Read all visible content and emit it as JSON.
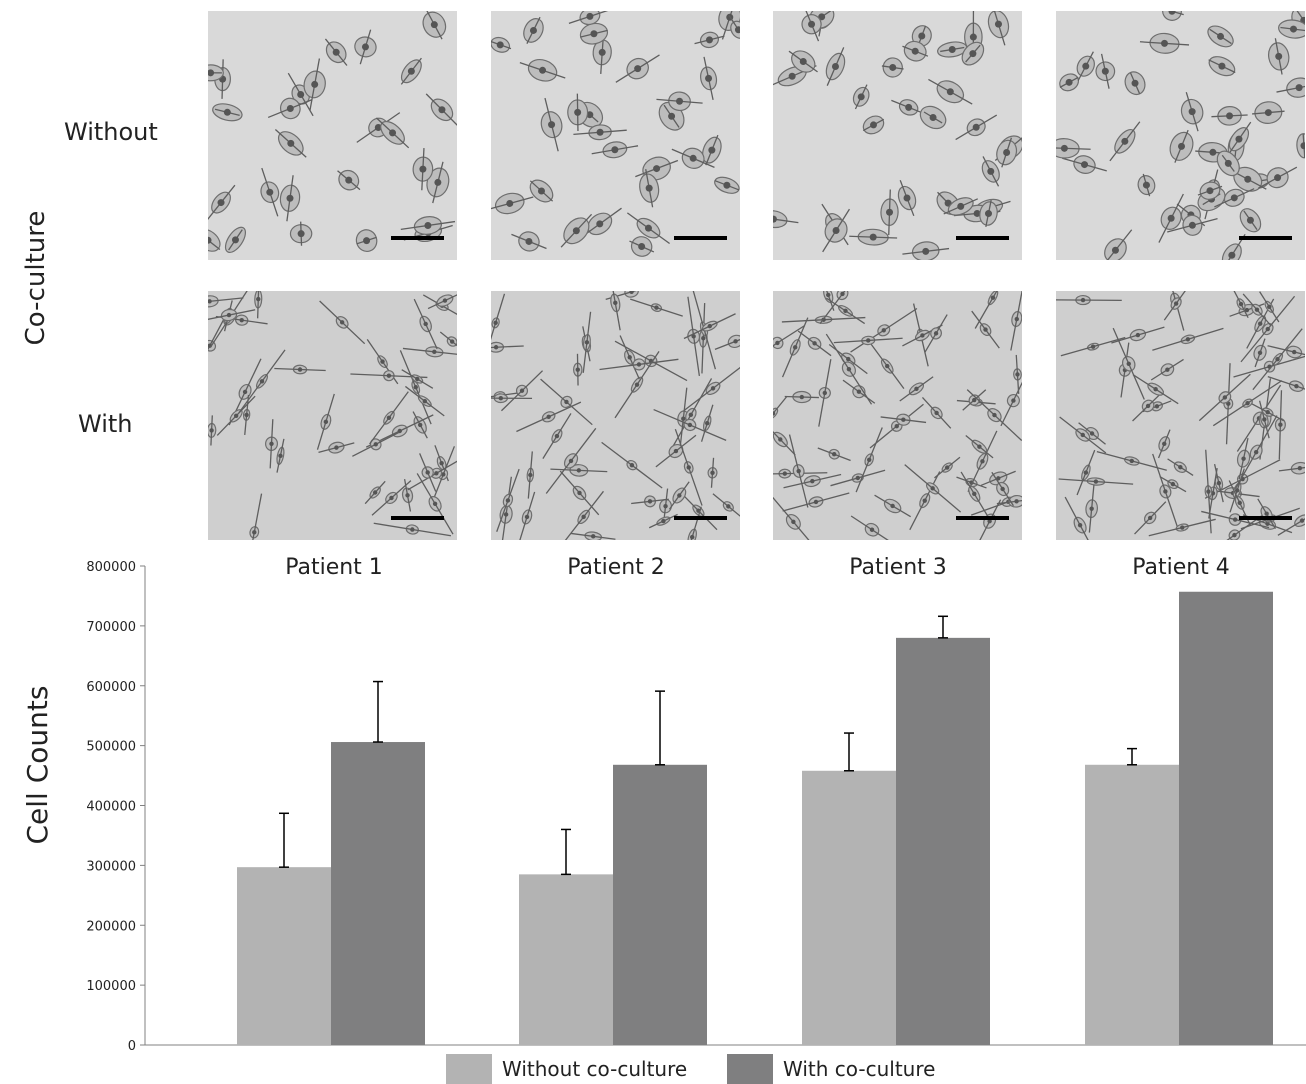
{
  "figure": {
    "coculture_axis_label": "Co-culture",
    "row_labels": [
      "Without",
      "With"
    ],
    "patients": [
      "Patient 1",
      "Patient 2",
      "Patient 3",
      "Patient 4"
    ]
  },
  "chart_data": {
    "type": "bar",
    "categories": [
      "Patient 1",
      "Patient 2",
      "Patient 3",
      "Patient 4"
    ],
    "series": [
      {
        "name": "Without co-culture",
        "color": "#b3b3b3",
        "values": [
          297000,
          285000,
          458000,
          468000
        ],
        "errors": [
          90000,
          75000,
          63000,
          27000
        ]
      },
      {
        "name": "With co-culture",
        "color": "#7f7f80",
        "values": [
          506000,
          468000,
          680000,
          757000
        ],
        "errors": [
          101000,
          123000,
          36000,
          0
        ]
      }
    ],
    "ylabel": "Cell Counts",
    "xlabel": "",
    "ylim": [
      0,
      800000
    ],
    "yticks": [
      0,
      100000,
      200000,
      300000,
      400000,
      500000,
      600000,
      700000,
      800000
    ],
    "ytick_labels": [
      "0",
      "100000",
      "200000",
      "300000",
      "400000",
      "500000",
      "600000",
      "700000",
      "800000"
    ],
    "grid": false,
    "legend_position": "bottom"
  }
}
